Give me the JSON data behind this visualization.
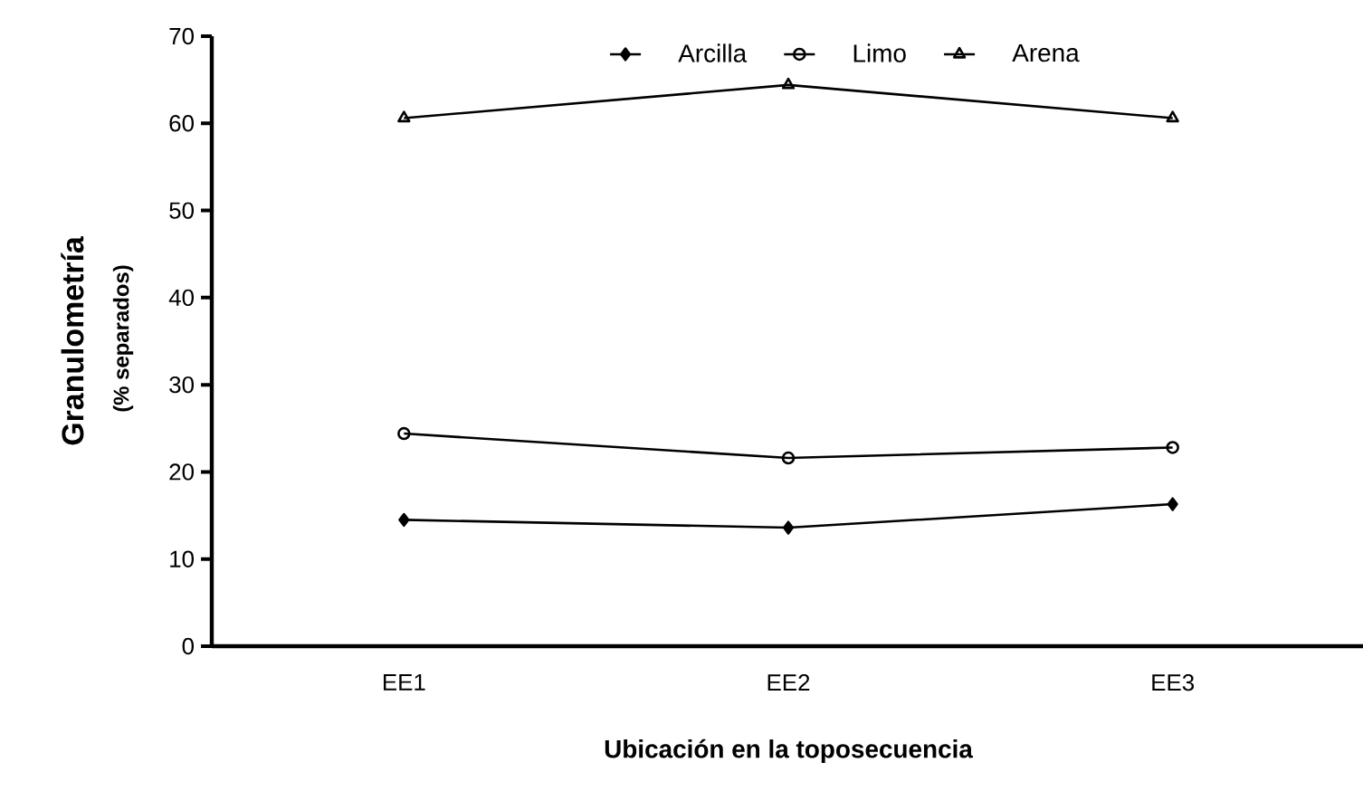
{
  "chart_data": {
    "type": "line",
    "xlabel": "Ubicación en la toposecuencia",
    "ylabel": "Granulometría",
    "annotations": [
      "(% separados)"
    ],
    "categories": [
      "EE1",
      "EE2",
      "EE3"
    ],
    "series": [
      {
        "name": "Arcilla",
        "color": "#000000",
        "marker": "diamond",
        "values": [
          14.5,
          13.6,
          16.3
        ]
      },
      {
        "name": "Limo",
        "color": "#000000",
        "marker": "circle",
        "values": [
          24.4,
          21.6,
          22.8
        ]
      },
      {
        "name": "Arena",
        "color": "#000000",
        "marker": "triangle",
        "values": [
          60.6,
          64.4,
          60.6
        ]
      }
    ],
    "ylim": [
      0,
      70
    ],
    "yticks": [
      0,
      10,
      20,
      30,
      40,
      50,
      60,
      70
    ],
    "grid": false,
    "legend": "top",
    "line_style": "solid"
  }
}
